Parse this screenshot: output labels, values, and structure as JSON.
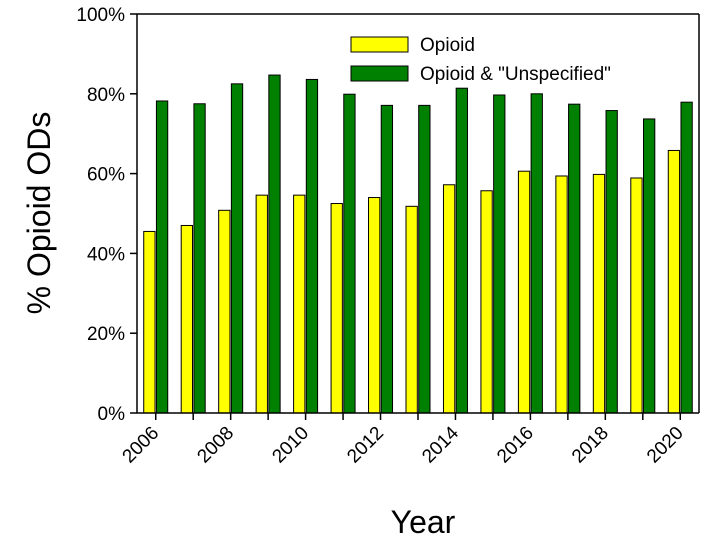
{
  "chart_data": {
    "type": "bar",
    "title": "",
    "xlabel": "Year",
    "ylabel": "% Opioid ODs",
    "ylim": [
      0,
      100
    ],
    "y_ticks": [
      "0%",
      "20%",
      "40%",
      "60%",
      "80%",
      "100%"
    ],
    "y_tick_values": [
      0,
      20,
      40,
      60,
      80,
      100
    ],
    "x_tick_labels": [
      "2006",
      "2008",
      "2010",
      "2012",
      "2014",
      "2016",
      "2018",
      "2020"
    ],
    "categories": [
      "2006",
      "2007",
      "2008",
      "2009",
      "2010",
      "2011",
      "2012",
      "2013",
      "2014",
      "2015",
      "2016",
      "2017",
      "2018",
      "2019",
      "2020"
    ],
    "grid": false,
    "legend_position": "top-right",
    "series": [
      {
        "name": "Opioid",
        "color": "#ffff00",
        "values": [
          45.5,
          47.0,
          50.8,
          54.6,
          54.6,
          52.5,
          54.0,
          51.8,
          57.2,
          55.7,
          60.6,
          59.4,
          59.8,
          58.9,
          65.8
        ]
      },
      {
        "name": "Opioid & \"Unspecified\"",
        "color": "#008000",
        "values": [
          78.2,
          77.5,
          82.5,
          84.7,
          83.6,
          79.9,
          77.1,
          77.1,
          81.4,
          79.7,
          80.0,
          77.4,
          75.8,
          73.7,
          77.9
        ]
      }
    ]
  }
}
